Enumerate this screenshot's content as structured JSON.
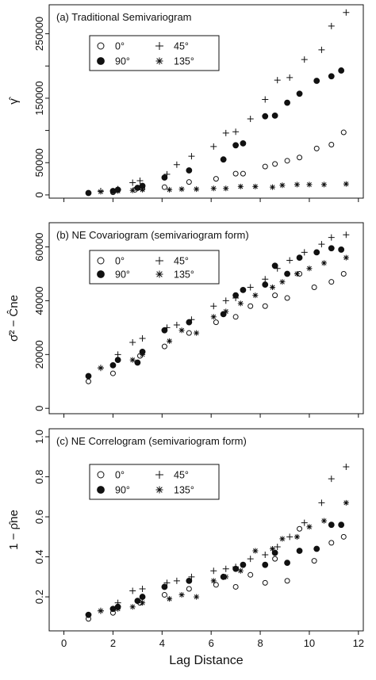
{
  "figure": {
    "xlabel": "Lag Distance",
    "legend_angles": [
      "0°",
      "45°",
      "90°",
      "135°"
    ]
  },
  "chart_data": [
    {
      "type": "scatter",
      "title": "(a) Traditional Semivariogram",
      "ylabel": "γ̂",
      "xlabel": "",
      "xlim": [
        -0.6,
        12.2
      ],
      "ylim": [
        -5000,
        295000
      ],
      "xticks": [
        0,
        2,
        4,
        6,
        8,
        10,
        12
      ],
      "yticks": [
        0,
        50000,
        100000,
        150000,
        200000,
        250000
      ],
      "ytick_labels": [
        "0",
        "50000",
        "150000",
        "250000"
      ],
      "ytick_label_values": [
        0,
        50000,
        150000,
        250000
      ],
      "grid": false,
      "legend_position": "top-left",
      "series": [
        {
          "name": "0°",
          "marker": "open-circle",
          "x": [
            1.0,
            2.0,
            2.9,
            3.2,
            4.1,
            5.1,
            6.2,
            7.0,
            7.3,
            8.2,
            8.6,
            9.1,
            9.6,
            10.3,
            10.9,
            11.4
          ],
          "y": [
            3000,
            4000,
            8000,
            10000,
            12000,
            20000,
            25000,
            33000,
            33000,
            44000,
            48000,
            53000,
            58000,
            72000,
            78000,
            97000
          ]
        },
        {
          "name": "45°",
          "marker": "plus",
          "x": [
            1.5,
            2.2,
            2.8,
            3.1,
            4.2,
            4.6,
            5.2,
            6.1,
            6.6,
            7.0,
            7.6,
            8.2,
            8.7,
            9.2,
            9.8,
            10.5,
            10.9,
            11.5
          ],
          "y": [
            6000,
            9000,
            19000,
            22000,
            32000,
            47000,
            60000,
            75000,
            96000,
            98000,
            118000,
            148000,
            178000,
            182000,
            210000,
            225000,
            262000,
            283000
          ]
        },
        {
          "name": "90°",
          "marker": "filled-circle",
          "x": [
            1.0,
            2.0,
            2.2,
            3.0,
            3.2,
            4.1,
            5.1,
            6.5,
            7.0,
            7.3,
            8.2,
            8.6,
            9.1,
            9.6,
            10.3,
            10.9,
            11.3
          ],
          "y": [
            3000,
            6000,
            8000,
            11000,
            14000,
            27000,
            38000,
            55000,
            77000,
            80000,
            122000,
            123000,
            143000,
            157000,
            177000,
            184000,
            193000
          ]
        },
        {
          "name": "135°",
          "marker": "asterisk",
          "x": [
            1.5,
            2.2,
            2.8,
            3.2,
            4.3,
            4.8,
            5.4,
            6.1,
            6.6,
            7.2,
            7.8,
            8.5,
            8.9,
            9.5,
            10.0,
            10.6,
            11.5
          ],
          "y": [
            5000,
            6000,
            7000,
            8000,
            8000,
            9000,
            9000,
            10000,
            10000,
            13000,
            13000,
            12000,
            15000,
            16000,
            16000,
            16000,
            17000
          ]
        }
      ]
    },
    {
      "type": "scatter",
      "title": "(b) NE Covariogram (semivariogram form)",
      "ylabel": "σ̂² − Ĉne",
      "xlabel": "",
      "xlim": [
        -0.6,
        12.2
      ],
      "ylim": [
        -2000,
        69000
      ],
      "xticks": [
        0,
        2,
        4,
        6,
        8,
        10,
        12
      ],
      "yticks": [
        0,
        20000,
        40000,
        60000
      ],
      "ytick_labels": [
        "0",
        "20000",
        "40000",
        "60000"
      ],
      "ytick_label_values": [
        0,
        20000,
        40000,
        60000
      ],
      "grid": false,
      "legend_position": "top-left",
      "series": [
        {
          "name": "0°",
          "marker": "open-circle",
          "x": [
            1.0,
            2.0,
            3.1,
            4.1,
            5.1,
            6.2,
            7.0,
            7.6,
            8.2,
            8.6,
            9.1,
            9.6,
            10.2,
            10.9,
            11.4
          ],
          "y": [
            10000,
            13000,
            19500,
            23000,
            28000,
            32000,
            34000,
            38000,
            38000,
            42000,
            41000,
            50000,
            45000,
            47000,
            50000
          ]
        },
        {
          "name": "45°",
          "marker": "plus",
          "x": [
            1.5,
            2.2,
            2.8,
            3.2,
            4.2,
            4.6,
            5.2,
            6.1,
            6.6,
            7.0,
            7.6,
            8.2,
            8.7,
            9.2,
            9.8,
            10.5,
            10.9,
            11.5
          ],
          "y": [
            15000,
            20000,
            24500,
            26000,
            30000,
            31000,
            33000,
            38000,
            40000,
            41000,
            45000,
            48000,
            52000,
            55000,
            58000,
            61000,
            63500,
            64500
          ]
        },
        {
          "name": "90°",
          "marker": "filled-circle",
          "x": [
            1.0,
            2.0,
            2.2,
            3.0,
            3.2,
            4.1,
            5.1,
            6.5,
            7.0,
            7.3,
            8.2,
            8.6,
            9.1,
            9.6,
            10.3,
            10.9,
            11.3
          ],
          "y": [
            12000,
            16000,
            18000,
            17000,
            21000,
            29000,
            32000,
            35000,
            42000,
            44000,
            46000,
            53000,
            50000,
            56000,
            58000,
            59500,
            59000
          ]
        },
        {
          "name": "135°",
          "marker": "asterisk",
          "x": [
            1.5,
            2.2,
            2.8,
            3.2,
            4.3,
            4.8,
            5.4,
            6.1,
            6.6,
            7.2,
            7.8,
            8.5,
            8.9,
            9.5,
            10.0,
            10.6,
            11.5
          ],
          "y": [
            15000,
            18000,
            18000,
            20000,
            25000,
            29000,
            28000,
            34000,
            36000,
            39000,
            42000,
            45000,
            47000,
            50000,
            52000,
            54000,
            56000
          ]
        }
      ]
    },
    {
      "type": "scatter",
      "title": "(c) NE Correlogram (semivariogram form)",
      "ylabel": "1 − ρ̂ne",
      "xlabel": "Lag Distance",
      "xlim": [
        -0.6,
        12.2
      ],
      "ylim": [
        0.03,
        1.04
      ],
      "xticks": [
        0,
        2,
        4,
        6,
        8,
        10,
        12
      ],
      "yticks": [
        0.2,
        0.4,
        0.6,
        0.8,
        1.0
      ],
      "ytick_labels": [
        "0.2",
        "0.4",
        "0.6",
        "0.8",
        "1.0"
      ],
      "ytick_label_values": [
        0.2,
        0.4,
        0.6,
        0.8,
        1.0
      ],
      "grid": false,
      "legend_position": "top-left",
      "series": [
        {
          "name": "0°",
          "marker": "open-circle",
          "x": [
            1.0,
            2.0,
            3.1,
            4.1,
            5.1,
            6.2,
            7.0,
            7.6,
            8.2,
            8.6,
            9.1,
            9.6,
            10.2,
            10.9,
            11.4
          ],
          "y": [
            0.09,
            0.12,
            0.17,
            0.21,
            0.24,
            0.26,
            0.25,
            0.31,
            0.27,
            0.39,
            0.28,
            0.54,
            0.38,
            0.47,
            0.5
          ]
        },
        {
          "name": "45°",
          "marker": "plus",
          "x": [
            1.5,
            2.2,
            2.8,
            3.2,
            4.2,
            4.6,
            5.2,
            6.1,
            6.6,
            7.0,
            7.6,
            8.2,
            8.7,
            9.2,
            9.8,
            10.5,
            10.9,
            11.5
          ],
          "y": [
            0.13,
            0.17,
            0.23,
            0.24,
            0.27,
            0.28,
            0.3,
            0.33,
            0.34,
            0.35,
            0.39,
            0.41,
            0.45,
            0.5,
            0.57,
            0.67,
            0.79,
            0.85
          ]
        },
        {
          "name": "90°",
          "marker": "filled-circle",
          "x": [
            1.0,
            2.0,
            2.2,
            3.0,
            3.2,
            4.1,
            5.1,
            6.5,
            7.0,
            7.3,
            8.2,
            8.6,
            9.1,
            9.6,
            10.3,
            10.9,
            11.3
          ],
          "y": [
            0.11,
            0.14,
            0.15,
            0.18,
            0.2,
            0.25,
            0.28,
            0.3,
            0.34,
            0.36,
            0.36,
            0.42,
            0.37,
            0.43,
            0.44,
            0.56,
            0.56
          ]
        },
        {
          "name": "135°",
          "marker": "asterisk",
          "x": [
            1.5,
            2.2,
            2.8,
            3.2,
            4.3,
            4.8,
            5.4,
            6.1,
            6.6,
            7.2,
            7.8,
            8.5,
            8.9,
            9.5,
            10.0,
            10.6,
            11.5
          ],
          "y": [
            0.13,
            0.14,
            0.15,
            0.17,
            0.19,
            0.21,
            0.2,
            0.28,
            0.3,
            0.33,
            0.43,
            0.44,
            0.49,
            0.5,
            0.55,
            0.58,
            0.67
          ]
        }
      ]
    }
  ]
}
